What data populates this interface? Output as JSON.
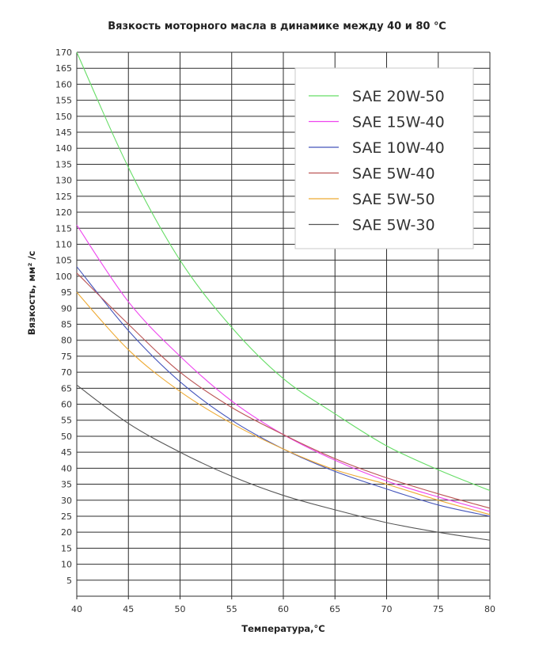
{
  "chart_data": {
    "type": "line",
    "title": "Вязкость моторного масла в динамике между 40 и 80 ℃",
    "xlabel": "Температура,°C",
    "ylabel": "Вязкость,  мм² /с",
    "xlim": [
      40,
      80
    ],
    "ylim": [
      0,
      170
    ],
    "x_ticks": [
      "40",
      "45",
      "50",
      "55",
      "60",
      "65",
      "70",
      "75",
      "80"
    ],
    "y_ticks": [
      "5",
      "10",
      "15",
      "20",
      "25",
      "30",
      "35",
      "40",
      "45",
      "50",
      "55",
      "60",
      "65",
      "70",
      "75",
      "80",
      "85",
      "90",
      "95",
      "100",
      "105",
      "110",
      "115",
      "120",
      "125",
      "130",
      "135",
      "140",
      "145",
      "150",
      "155",
      "160",
      "165",
      "170"
    ],
    "grid": true,
    "legend_position": "top-right",
    "x": [
      40,
      45,
      50,
      55,
      60,
      65,
      70,
      75,
      80
    ],
    "series": [
      {
        "name": "SAE 20W-50",
        "color": "#66dd66",
        "values": [
          170,
          134,
          105,
          84,
          68,
          57,
          47,
          39.5,
          33
        ]
      },
      {
        "name": "SAE 15W-40",
        "color": "#ee44ee",
        "values": [
          116,
          92,
          75,
          61,
          50.5,
          42.5,
          36,
          31,
          26.5
        ]
      },
      {
        "name": "SAE 10W-40",
        "color": "#4455bb",
        "values": [
          103,
          83,
          67,
          55,
          46,
          39,
          33.5,
          28.5,
          25
        ]
      },
      {
        "name": "SAE 5W-40",
        "color": "#bb5555",
        "values": [
          101,
          85,
          70,
          59,
          50.5,
          43,
          37,
          32,
          27.5
        ]
      },
      {
        "name": "SAE 5W-50",
        "color": "#eeaa33",
        "values": [
          95,
          77,
          64,
          54,
          46,
          39.5,
          35,
          30,
          25.5
        ]
      },
      {
        "name": "SAE 5W-30",
        "color": "#555555",
        "values": [
          66,
          54,
          45,
          37.5,
          31.5,
          27,
          23,
          20,
          17.5
        ]
      }
    ]
  }
}
